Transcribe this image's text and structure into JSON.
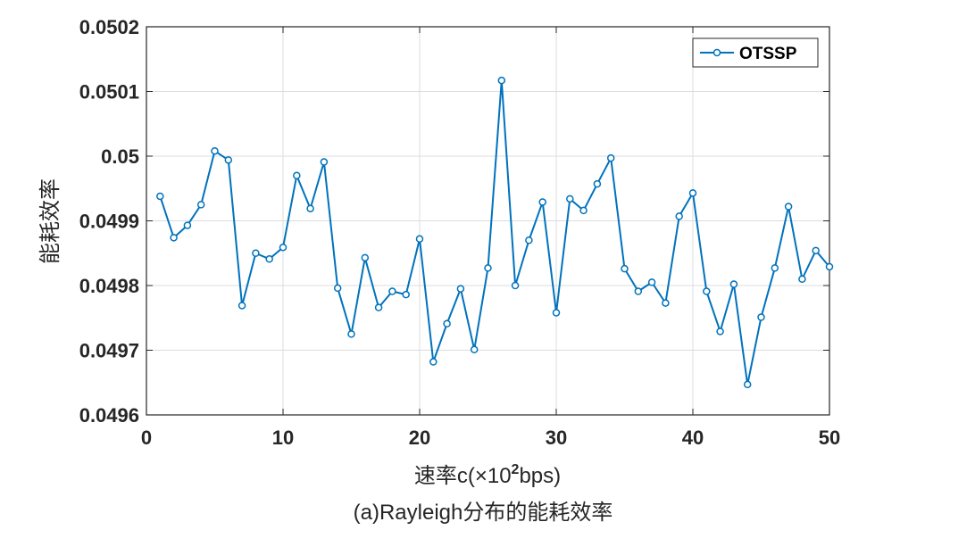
{
  "chart_data": {
    "type": "line",
    "xlabel": "速率c(×10",
    "xlabel_exp": "2",
    "xlabel_suffix": "bps)",
    "ylabel": "能耗效率",
    "caption": "(a)Rayleigh分布的能耗效率",
    "xlim": [
      0,
      50
    ],
    "ylim": [
      0.0496,
      0.0502
    ],
    "xticks": [
      0,
      10,
      20,
      30,
      40,
      50
    ],
    "xtick_labels": [
      "0",
      "10",
      "20",
      "30",
      "40",
      "50"
    ],
    "yticks": [
      0.0496,
      0.0497,
      0.0498,
      0.0499,
      0.05,
      0.0501,
      0.0502
    ],
    "ytick_labels": [
      "0.0496",
      "0.0497",
      "0.0498",
      "0.0499",
      "0.05",
      "0.0501",
      "0.0502"
    ],
    "grid": true,
    "legend": {
      "position": "top-right",
      "entries": [
        "OTSSP"
      ]
    },
    "colors": {
      "series": "#0072BD"
    },
    "series": [
      {
        "name": "OTSSP",
        "marker": "circle",
        "x": [
          1,
          2,
          3,
          4,
          5,
          6,
          7,
          8,
          9,
          10,
          11,
          12,
          13,
          14,
          15,
          16,
          17,
          18,
          19,
          20,
          21,
          22,
          23,
          24,
          25,
          26,
          27,
          28,
          29,
          30,
          31,
          32,
          33,
          34,
          35,
          36,
          37,
          38,
          39,
          40,
          41,
          42,
          43,
          44,
          45,
          46,
          47,
          48,
          49,
          50
        ],
        "y": [
          0.049938,
          0.049874,
          0.049893,
          0.049925,
          0.050008,
          0.049994,
          0.049769,
          0.04985,
          0.049841,
          0.049859,
          0.04997,
          0.049919,
          0.049991,
          0.049796,
          0.049725,
          0.049843,
          0.049766,
          0.049791,
          0.049786,
          0.049872,
          0.049682,
          0.049741,
          0.049795,
          0.049701,
          0.049827,
          0.050117,
          0.0498,
          0.04987,
          0.049929,
          0.049758,
          0.049934,
          0.049916,
          0.049957,
          0.049997,
          0.049826,
          0.049791,
          0.049805,
          0.049773,
          0.049907,
          0.049943,
          0.049791,
          0.049729,
          0.049802,
          0.049647,
          0.049751,
          0.049827,
          0.049922,
          0.04981,
          0.049854,
          0.049829
        ]
      }
    ]
  }
}
